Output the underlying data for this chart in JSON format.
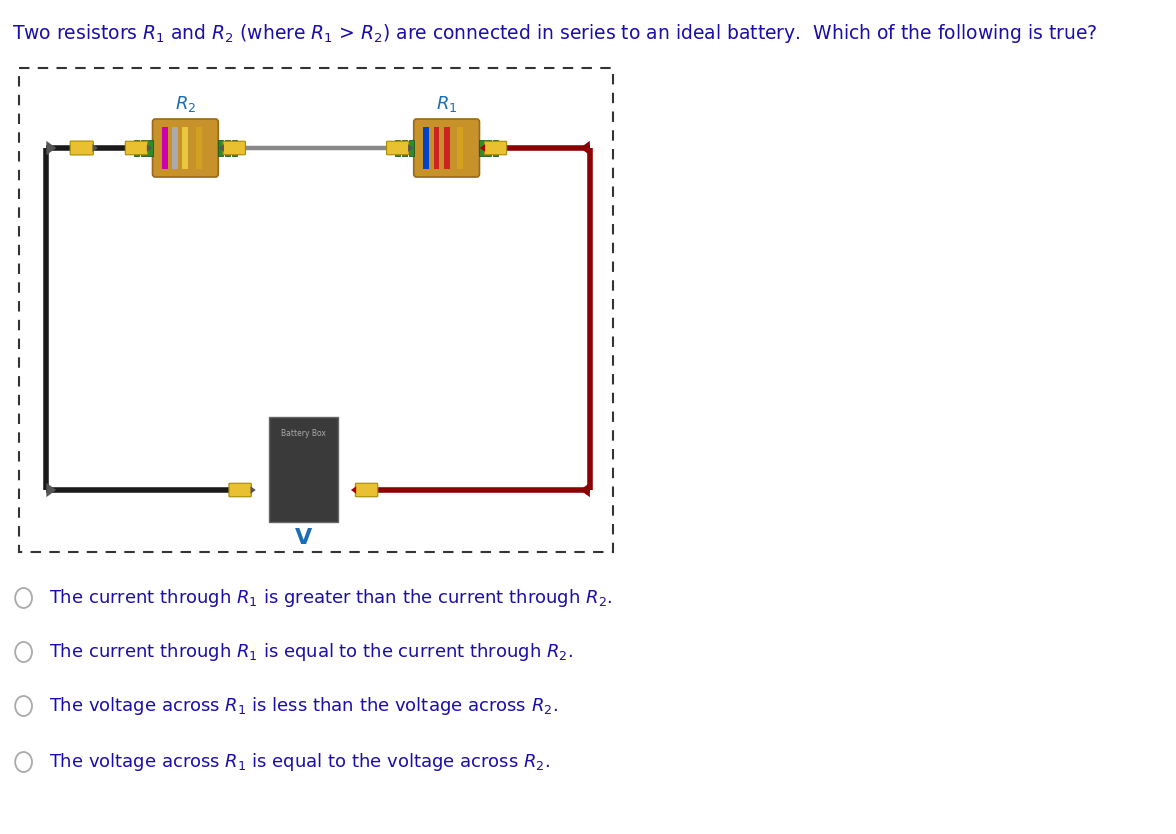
{
  "title_color": "#1a0dab",
  "title_fontsize": 13.5,
  "options": [
    "The current through R₁ is greater than the current through R₂.",
    "The current through R₁ is equal to the current through R₂.",
    "The voltage across R₁ is less than the voltage across R₂.",
    "The voltage across R₁ is equal to the voltage across R₂."
  ],
  "option_color": "#1a0dab",
  "option_fontsize": 13,
  "bg_color": "#ffffff",
  "R2_label_color": "#1a6eb5",
  "R1_label_color": "#1a6eb5",
  "V_label_color": "#1a6eb5",
  "battery_box_color": "#3a3a3a",
  "battery_label": "Battery Box",
  "battery_label_color": "#aaaaaa",
  "wire_black": "#1a1a1a",
  "wire_red": "#8b0000",
  "wire_gray": "#888888"
}
